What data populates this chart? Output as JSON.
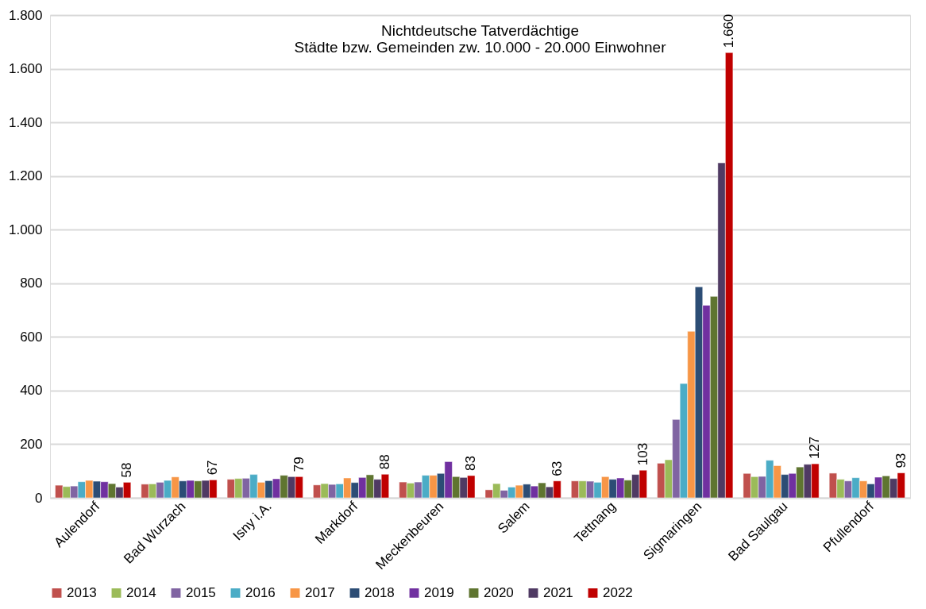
{
  "chart_data": {
    "type": "bar",
    "title": [
      "Nichtdeutsche Tatverdächtige",
      "Städte bzw. Gemeinden zw. 10.000 - 20.000 Einwohner"
    ],
    "categories": [
      "Aulendorf",
      "Bad Wurzach",
      "Isny i.A.",
      "Markdorf",
      "Meckenbeuren",
      "Salem",
      "Tettnang",
      "Sigmaringen",
      "Bad Saulgau",
      "Pfullendorf"
    ],
    "series": [
      {
        "name": "2013",
        "color": "#c0504d",
        "values": [
          47,
          51,
          69,
          48,
          59,
          30,
          63,
          129,
          91,
          92
        ]
      },
      {
        "name": "2014",
        "color": "#9bbb59",
        "values": [
          42,
          52,
          72,
          53,
          55,
          53,
          63,
          142,
          79,
          69
        ]
      },
      {
        "name": "2015",
        "color": "#8064a2",
        "values": [
          44,
          58,
          73,
          50,
          59,
          28,
          62,
          292,
          80,
          63
        ]
      },
      {
        "name": "2016",
        "color": "#4bacc6",
        "values": [
          60,
          65,
          87,
          52,
          84,
          40,
          58,
          426,
          140,
          75
        ]
      },
      {
        "name": "2017",
        "color": "#f79646",
        "values": [
          65,
          78,
          58,
          74,
          84,
          47,
          79,
          621,
          120,
          63
        ]
      },
      {
        "name": "2018",
        "color": "#2c4d75",
        "values": [
          62,
          63,
          64,
          57,
          91,
          51,
          69,
          787,
          87,
          52
        ]
      },
      {
        "name": "2019",
        "color": "#7030a0",
        "values": [
          60,
          65,
          71,
          76,
          135,
          44,
          74,
          718,
          91,
          77
        ]
      },
      {
        "name": "2020",
        "color": "#5f7530",
        "values": [
          53,
          63,
          84,
          86,
          79,
          56,
          66,
          751,
          115,
          82
        ]
      },
      {
        "name": "2021",
        "color": "#4f3a63",
        "values": [
          40,
          65,
          79,
          69,
          76,
          41,
          87,
          1249,
          125,
          72
        ]
      },
      {
        "name": "2022",
        "color": "#c00000",
        "values": [
          58,
          67,
          79,
          88,
          83,
          63,
          103,
          1660,
          127,
          93
        ],
        "value_labels": [
          "58",
          "67",
          "79",
          "88",
          "83",
          "63",
          "103",
          "1.660",
          "127",
          "93"
        ]
      }
    ],
    "ylim": [
      0,
      1800
    ],
    "yticks": [
      0,
      200,
      400,
      600,
      800,
      {
        "value": 1000,
        "label": "1.000"
      },
      {
        "value": 1200,
        "label": "1.200"
      },
      {
        "value": 1400,
        "label": "1.400"
      },
      {
        "value": 1600,
        "label": "1.600"
      },
      {
        "value": 1800,
        "label": "1.800"
      }
    ],
    "grid": "y",
    "legend": "bottom"
  }
}
